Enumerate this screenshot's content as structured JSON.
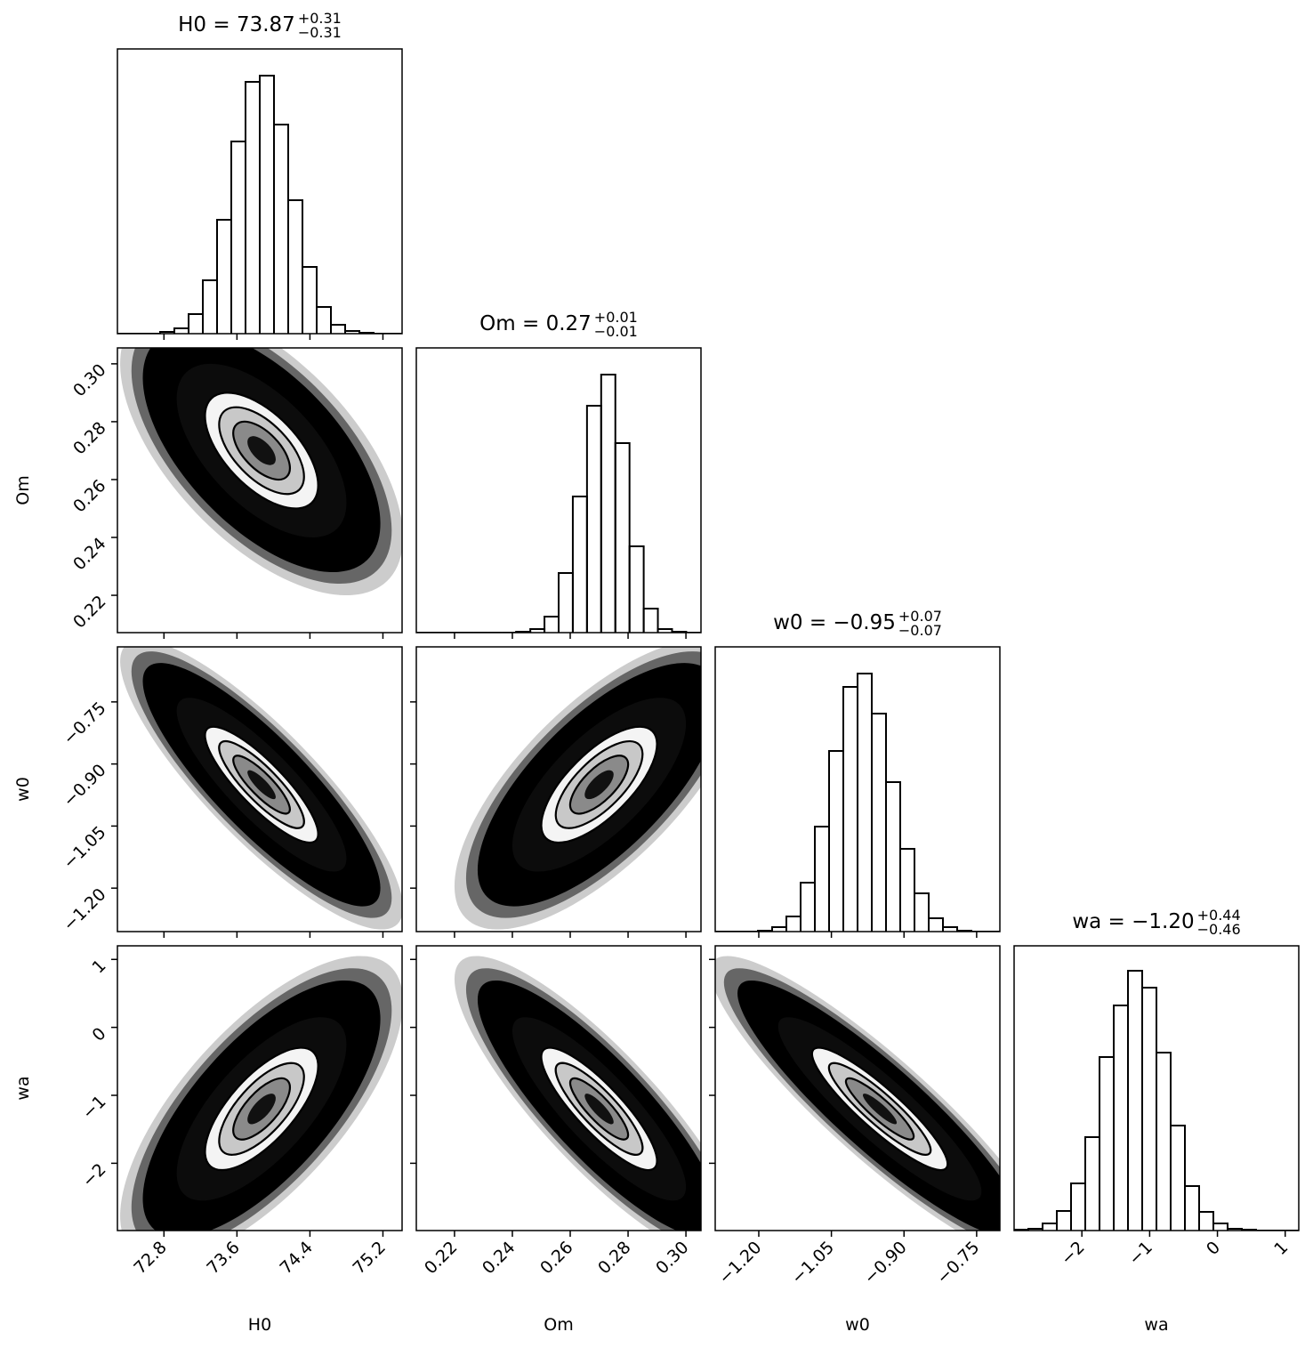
{
  "chart_data": {
    "type": "corner",
    "hist_ylim": [
      0,
      320
    ],
    "params": [
      {
        "name": "H0",
        "title": "H0 = 73.87",
        "sup": "+0.31",
        "sub": "−0.31",
        "median": 73.87,
        "plus": 0.31,
        "minus": 0.31,
        "xlim": [
          72.29,
          75.41
        ],
        "ticks": [
          72.8,
          73.6,
          74.4,
          75.2
        ],
        "bins": [
          72.29,
          72.446,
          72.602,
          72.758,
          72.914,
          73.07,
          73.226,
          73.382,
          73.538,
          73.694,
          73.85,
          74.006,
          74.162,
          74.318,
          74.474,
          74.63,
          74.786,
          74.942,
          75.098,
          75.254,
          75.41
        ],
        "counts": [
          0,
          0,
          0,
          2,
          6,
          22,
          60,
          128,
          216,
          283,
          290,
          235,
          150,
          75,
          30,
          10,
          3,
          1,
          0,
          0
        ]
      },
      {
        "name": "Om",
        "title": "Om = 0.27",
        "sup": "+0.01",
        "sub": "−0.01",
        "median": 0.27,
        "plus": 0.01,
        "minus": 0.01,
        "xlim": [
          0.2068,
          0.3052
        ],
        "ylim": [
          0.2071,
          0.3055
        ],
        "ticks": [
          0.22,
          0.24,
          0.26,
          0.28,
          {
            "value": 0.3,
            "label": "0.30"
          }
        ],
        "bins": [
          0.207,
          0.2119,
          0.2168,
          0.2217,
          0.2266,
          0.2315,
          0.2364,
          0.2413,
          0.2462,
          0.2511,
          0.256,
          0.2609,
          0.2658,
          0.2707,
          0.2756,
          0.2805,
          0.2854,
          0.2903,
          0.2952,
          0.3001,
          0.305
        ],
        "counts": [
          0,
          0,
          0,
          0,
          0,
          0,
          0,
          1,
          4,
          18,
          67,
          153,
          255,
          290,
          213,
          97,
          27,
          4,
          1,
          0
        ]
      },
      {
        "name": "w0",
        "title": "w0 = −0.95",
        "sup": "+0.07",
        "sub": "−0.07",
        "median": -0.95,
        "plus": 0.07,
        "minus": 0.07,
        "xlim": [
          -1.29,
          -0.702
        ],
        "ylim": [
          -1.305,
          -0.617
        ],
        "ticks": [
          {
            "value": -1.2,
            "label": "−1.20"
          },
          {
            "value": -1.05,
            "label": "−1.05"
          },
          {
            "value": -0.9,
            "label": "−0.90"
          },
          {
            "value": -0.75,
            "label": "−0.75"
          }
        ],
        "bins": [
          -1.29,
          -1.2606,
          -1.2312,
          -1.2018,
          -1.1724,
          -1.143,
          -1.1136,
          -1.0842,
          -1.0548,
          -1.0254,
          -0.996,
          -0.9666,
          -0.9372,
          -0.9078,
          -0.8784,
          -0.849,
          -0.8196,
          -0.7902,
          -0.7608,
          -0.7314,
          -0.702
        ],
        "counts": [
          0,
          0,
          0,
          1,
          5,
          17,
          55,
          118,
          203,
          275,
          290,
          245,
          168,
          93,
          43,
          15,
          5,
          1,
          0,
          0
        ]
      },
      {
        "name": "wa",
        "title": "wa = −1.20",
        "sup": "+0.44",
        "sub": "−0.46",
        "median": -1.2,
        "plus": 0.44,
        "minus": 0.46,
        "xlim": [
          -3.0,
          1.2
        ],
        "ylim": [
          -2.99,
          1.2
        ],
        "ticks": [
          {
            "value": -2,
            "label": "−2"
          },
          {
            "value": -1,
            "label": "−1"
          },
          0,
          1
        ],
        "bins": [
          -3.0,
          -2.79,
          -2.58,
          -2.37,
          -2.16,
          -1.95,
          -1.74,
          -1.53,
          -1.32,
          -1.11,
          -0.9,
          -0.69,
          -0.48,
          -0.27,
          -0.06,
          0.15,
          0.36,
          0.57,
          0.78,
          0.99,
          1.2
        ],
        "counts": [
          1,
          2,
          8,
          22,
          53,
          105,
          195,
          253,
          292,
          273,
          200,
          118,
          50,
          21,
          8,
          2,
          1,
          0,
          0,
          0
        ]
      }
    ],
    "correlations": [
      [
        -0.6
      ],
      [
        -0.85,
        0.7
      ],
      [
        0.7,
        -0.85,
        -0.9
      ]
    ]
  }
}
